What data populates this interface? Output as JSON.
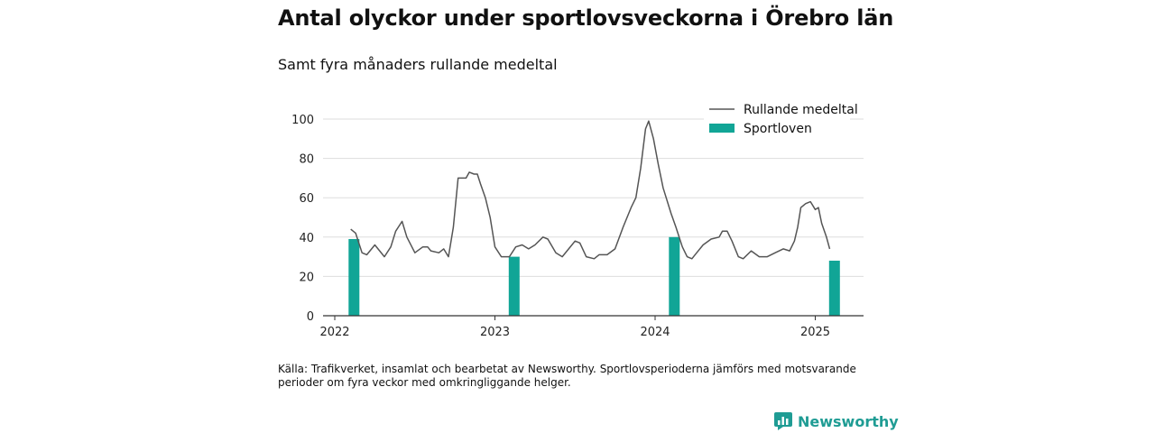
{
  "title": "Antal olyckor under sportlovsveckorna i Örebro län",
  "subtitle": "Samt fyra månaders rullande medeltal",
  "source": "Källa: Trafikverket, insamlat och bearbetat av Newsworthy. Sportlovsperioderna jämförs med motsvarande perioder om fyra veckor med omkringliggande helger.",
  "brand": {
    "name": "Newsworthy",
    "color": "#1f9c94"
  },
  "colors": {
    "line": "#555555",
    "bar": "#11a596",
    "grid": "#dddddd",
    "axis": "#333333"
  },
  "chart_data": {
    "type": "bar+line",
    "ylim": [
      0,
      100
    ],
    "xlim": [
      2022.0,
      2025.3
    ],
    "yticks": [
      0,
      20,
      40,
      60,
      80,
      100
    ],
    "xticks": [
      {
        "value": 2022,
        "label": "2022"
      },
      {
        "value": 2023,
        "label": "2023"
      },
      {
        "value": 2024,
        "label": "2024"
      },
      {
        "value": 2025,
        "label": "2025"
      }
    ],
    "grid": true,
    "legend_position": "top-right",
    "legend": [
      {
        "label": "Rullande medeltal",
        "kind": "line"
      },
      {
        "label": "Sportloven",
        "kind": "bar"
      }
    ],
    "bars": {
      "name": "Sportloven",
      "x": [
        2022.12,
        2023.12,
        2024.12,
        2025.12
      ],
      "values": [
        39,
        30,
        40,
        28
      ]
    },
    "line": {
      "name": "Rullande medeltal",
      "points": [
        [
          2022.1,
          44
        ],
        [
          2022.13,
          42
        ],
        [
          2022.17,
          32
        ],
        [
          2022.2,
          31
        ],
        [
          2022.25,
          36
        ],
        [
          2022.31,
          30
        ],
        [
          2022.35,
          35
        ],
        [
          2022.38,
          43
        ],
        [
          2022.42,
          48
        ],
        [
          2022.45,
          40
        ],
        [
          2022.5,
          32
        ],
        [
          2022.55,
          35
        ],
        [
          2022.58,
          35
        ],
        [
          2022.6,
          33
        ],
        [
          2022.65,
          32
        ],
        [
          2022.68,
          34
        ],
        [
          2022.71,
          30
        ],
        [
          2022.74,
          45
        ],
        [
          2022.77,
          70
        ],
        [
          2022.82,
          70
        ],
        [
          2022.84,
          73
        ],
        [
          2022.87,
          72
        ],
        [
          2022.89,
          72
        ],
        [
          2022.91,
          67
        ],
        [
          2022.94,
          60
        ],
        [
          2022.97,
          50
        ],
        [
          2023.0,
          35
        ],
        [
          2023.04,
          30
        ],
        [
          2023.09,
          30
        ],
        [
          2023.13,
          35
        ],
        [
          2023.17,
          36
        ],
        [
          2023.21,
          34
        ],
        [
          2023.25,
          36
        ],
        [
          2023.3,
          40
        ],
        [
          2023.33,
          39
        ],
        [
          2023.38,
          32
        ],
        [
          2023.42,
          30
        ],
        [
          2023.45,
          33
        ],
        [
          2023.5,
          38
        ],
        [
          2023.53,
          37
        ],
        [
          2023.57,
          30
        ],
        [
          2023.62,
          29
        ],
        [
          2023.65,
          31
        ],
        [
          2023.7,
          31
        ],
        [
          2023.75,
          34
        ],
        [
          2023.8,
          45
        ],
        [
          2023.85,
          55
        ],
        [
          2023.88,
          60
        ],
        [
          2023.91,
          75
        ],
        [
          2023.94,
          95
        ],
        [
          2023.96,
          99
        ],
        [
          2023.99,
          90
        ],
        [
          2024.02,
          77
        ],
        [
          2024.05,
          65
        ],
        [
          2024.1,
          52
        ],
        [
          2024.13,
          45
        ],
        [
          2024.17,
          35
        ],
        [
          2024.2,
          30
        ],
        [
          2024.23,
          29
        ],
        [
          2024.26,
          32
        ],
        [
          2024.3,
          36
        ],
        [
          2024.35,
          39
        ],
        [
          2024.4,
          40
        ],
        [
          2024.42,
          43
        ],
        [
          2024.45,
          43
        ],
        [
          2024.48,
          38
        ],
        [
          2024.52,
          30
        ],
        [
          2024.55,
          29
        ],
        [
          2024.6,
          33
        ],
        [
          2024.65,
          30
        ],
        [
          2024.7,
          30
        ],
        [
          2024.75,
          32
        ],
        [
          2024.8,
          34
        ],
        [
          2024.84,
          33
        ],
        [
          2024.87,
          38
        ],
        [
          2024.89,
          45
        ],
        [
          2024.91,
          55
        ],
        [
          2024.94,
          57
        ],
        [
          2024.97,
          58
        ],
        [
          2025.0,
          54
        ],
        [
          2025.02,
          55
        ],
        [
          2025.04,
          47
        ],
        [
          2025.07,
          40
        ],
        [
          2025.09,
          34
        ]
      ]
    }
  }
}
